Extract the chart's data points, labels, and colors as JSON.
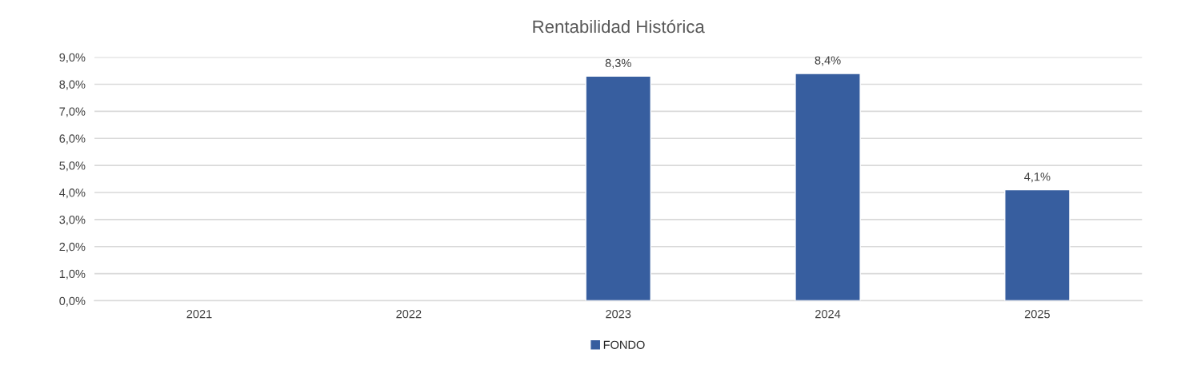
{
  "chart_data": {
    "type": "bar",
    "title": "Rentabilidad Histórica",
    "categories": [
      "2021",
      "2022",
      "2023",
      "2024",
      "2025"
    ],
    "series": [
      {
        "name": "FONDO",
        "color": "#375e9f",
        "values": [
          null,
          null,
          8.3,
          8.4,
          4.1
        ],
        "value_labels": [
          null,
          null,
          "8,3%",
          "8,4%",
          "4,1%"
        ]
      }
    ],
    "ylim": [
      0,
      9
    ],
    "yticks": [
      {
        "value": 0,
        "label": "0,0%"
      },
      {
        "value": 1,
        "label": "1,0%"
      },
      {
        "value": 2,
        "label": "2,0%"
      },
      {
        "value": 3,
        "label": "3,0%"
      },
      {
        "value": 4,
        "label": "4,0%"
      },
      {
        "value": 5,
        "label": "5,0%"
      },
      {
        "value": 6,
        "label": "6,0%"
      },
      {
        "value": 7,
        "label": "7,0%"
      },
      {
        "value": 8,
        "label": "8,0%"
      },
      {
        "value": 9,
        "label": "9,0%"
      }
    ],
    "grid": "y",
    "legend": "bottom"
  }
}
